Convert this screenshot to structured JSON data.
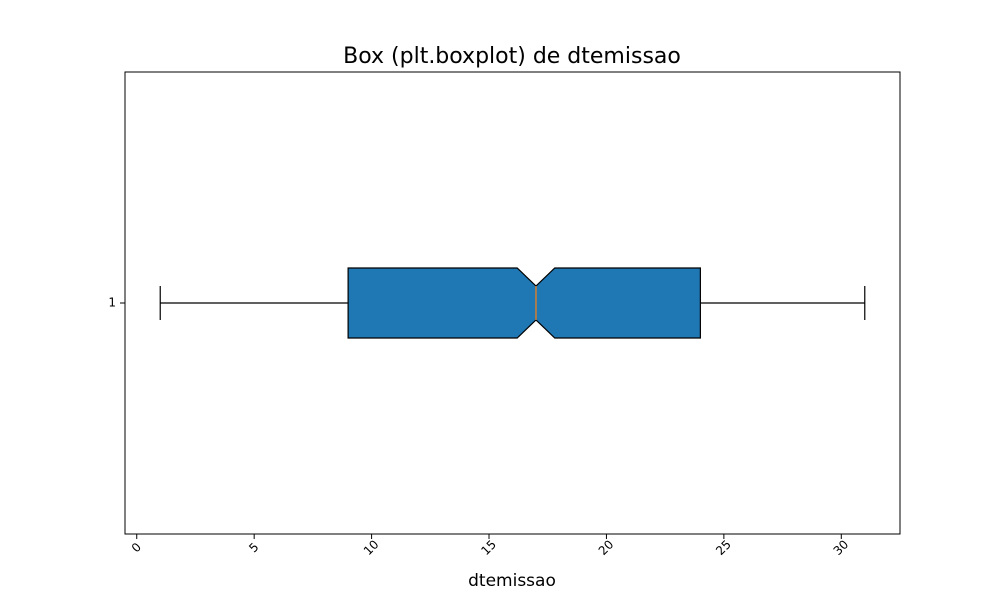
{
  "chart_data": {
    "type": "boxplot",
    "orientation": "horizontal",
    "notch": true,
    "title": "Box (plt.boxplot) de dtemissao",
    "xlabel": "dtemissao",
    "ylabel": "",
    "xlim": [
      -0.5,
      32.5
    ],
    "x_ticks": [
      0,
      5,
      10,
      15,
      20,
      25,
      30
    ],
    "x_tick_labels": [
      "0",
      "5",
      "10",
      "15",
      "20",
      "25",
      "30"
    ],
    "x_tick_rotation": -45,
    "y_tick_labels": [
      "1"
    ],
    "grid": false,
    "boxes": [
      {
        "label": "1",
        "whisker_low": 1,
        "q1": 9,
        "median": 17,
        "q3": 24,
        "whisker_high": 31,
        "notch_low": 16.2,
        "notch_high": 17.8
      }
    ],
    "colors": {
      "box_fill": "#1f77b4",
      "box_edge": "#000000",
      "median": "#ff7f0e",
      "whisker": "#000000"
    }
  }
}
